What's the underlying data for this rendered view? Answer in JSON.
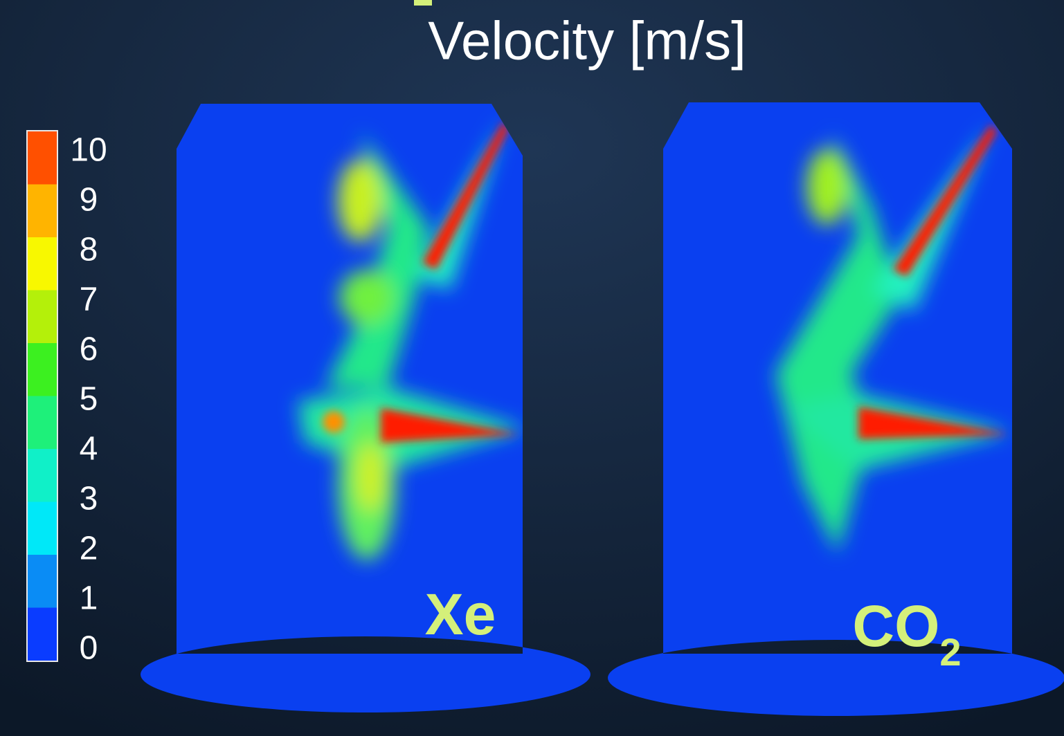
{
  "title": "Velocity [m/s]",
  "colorbar": {
    "ticks": [
      0,
      1,
      2,
      3,
      4,
      5,
      6,
      7,
      8,
      9,
      10
    ],
    "colors": [
      "#0a3cff",
      "#0a8cf5",
      "#00e8f8",
      "#10f0c8",
      "#1ef07a",
      "#3cf020",
      "#b4f00a",
      "#f8f800",
      "#ffb400",
      "#ff5000"
    ]
  },
  "panels": [
    {
      "label": "Xe"
    },
    {
      "label": "CO",
      "subscript": "2"
    }
  ]
}
